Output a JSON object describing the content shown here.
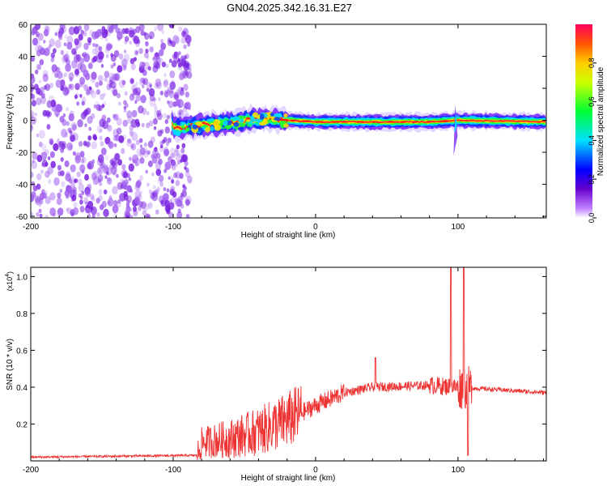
{
  "chart_data": [
    {
      "type": "heatmap",
      "title": "GN04.2025.342.16.31.E27",
      "xlabel": "Height of straight line (km)",
      "ylabel": "Frequency (Hz)",
      "xlim": [
        -200,
        162
      ],
      "ylim": [
        -61,
        60
      ],
      "x_ticks": [
        "-200",
        "-100",
        "0",
        "100"
      ],
      "x_tick_values": [
        -200,
        -100,
        0,
        100
      ],
      "y_ticks": [
        "60",
        "40",
        "20",
        "0",
        "-20",
        "-40",
        "-60"
      ],
      "y_tick_values": [
        60,
        40,
        20,
        0,
        -20,
        -40,
        -60
      ],
      "colorbar": {
        "label": "Normalized spectral amplitude",
        "range": [
          0,
          1
        ],
        "ticks": [
          "0.0",
          "0.2",
          "0.4",
          "0.6",
          "0.8"
        ],
        "tick_values": [
          0.0,
          0.2,
          0.4,
          0.6,
          0.8
        ]
      },
      "ridge": {
        "description_free": true,
        "noise_region_x": [
          -200,
          -90
        ],
        "ridge_start_x": -101,
        "ridge_end_x": 162,
        "ridge_center_freq": [
          {
            "x": -100,
            "f": -5
          },
          {
            "x": -80,
            "f": -3
          },
          {
            "x": -60,
            "f": -2
          },
          {
            "x": -40,
            "f": 1
          },
          {
            "x": -20,
            "f": 0
          },
          {
            "x": 0,
            "f": -1
          },
          {
            "x": 40,
            "f": -1
          },
          {
            "x": 80,
            "f": -1
          },
          {
            "x": 100,
            "f": 0
          },
          {
            "x": 162,
            "f": -1
          }
        ],
        "spike_x": 98
      }
    },
    {
      "type": "line",
      "series": [
        {
          "name": "SNR",
          "color": "#ee3333"
        }
      ],
      "xlabel": "Height of straight line (km)",
      "ylabel": "SNR (10 * v/v)",
      "y_multiplier": "(x10^4)",
      "y_multiplier_base": "(x10",
      "y_multiplier_exp": "4",
      "y_multiplier_close": ")",
      "xlim": [
        -200,
        162
      ],
      "ylim": [
        0,
        1.05
      ],
      "x_ticks": [
        "-200",
        "-100",
        "0",
        "100"
      ],
      "x_tick_values": [
        -200,
        -100,
        0,
        100
      ],
      "y_ticks": [
        "0.2",
        "0.4",
        "0.6",
        "0.8",
        "1.0"
      ],
      "y_tick_values": [
        0.2,
        0.4,
        0.6,
        0.8,
        1.0
      ],
      "control_points": [
        {
          "x": -200,
          "y": 0.02
        },
        {
          "x": -83,
          "y": 0.03
        },
        {
          "x": -80,
          "y": 0.1
        },
        {
          "x": -60,
          "y": 0.12
        },
        {
          "x": -40,
          "y": 0.16
        },
        {
          "x": -20,
          "y": 0.22
        },
        {
          "x": 0,
          "y": 0.3
        },
        {
          "x": 20,
          "y": 0.37
        },
        {
          "x": 40,
          "y": 0.4
        },
        {
          "x": 80,
          "y": 0.41
        },
        {
          "x": 100,
          "y": 0.4
        },
        {
          "x": 120,
          "y": 0.39
        },
        {
          "x": 162,
          "y": 0.37
        }
      ],
      "peaks": [
        {
          "x": 42,
          "y": 0.56
        },
        {
          "x": 95,
          "y": 1.06
        },
        {
          "x": 104,
          "y": 1.06
        },
        {
          "x": 107,
          "y": 0.03
        }
      ]
    }
  ],
  "colors": {
    "line": "#ee3333",
    "noise": "#8833dd"
  }
}
